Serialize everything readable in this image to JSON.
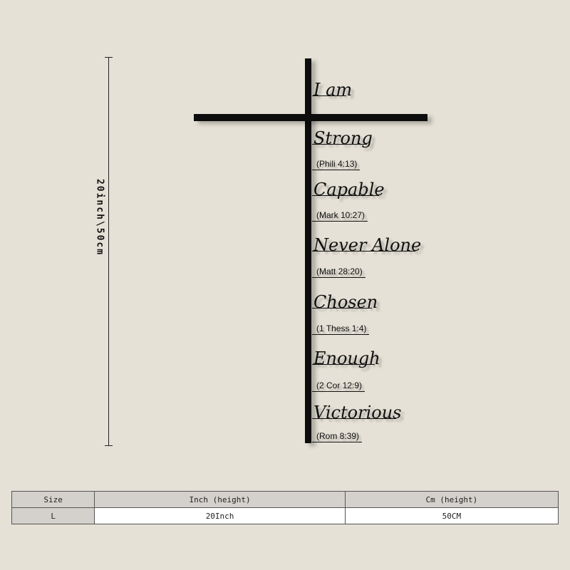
{
  "dimension_label": "20inch\\50cm",
  "cross": {
    "title": "I am",
    "items": [
      {
        "word": "Strong",
        "ref": "(Phili 4:13)"
      },
      {
        "word": "Capable",
        "ref": "(Mark 10:27)"
      },
      {
        "word": "Never Alone",
        "ref": "(Matt 28:20)"
      },
      {
        "word": "Chosen",
        "ref": "(1 Thess 1:4)"
      },
      {
        "word": "Enough",
        "ref": "(2 Cor 12:9)"
      },
      {
        "word": "Victorious",
        "ref": "(Rom 8:39)"
      }
    ]
  },
  "size_table": {
    "headers": [
      "Size",
      "Inch (height)",
      "Cm (height)"
    ],
    "rows": [
      [
        "L",
        "20Inch",
        "50CM"
      ]
    ]
  }
}
